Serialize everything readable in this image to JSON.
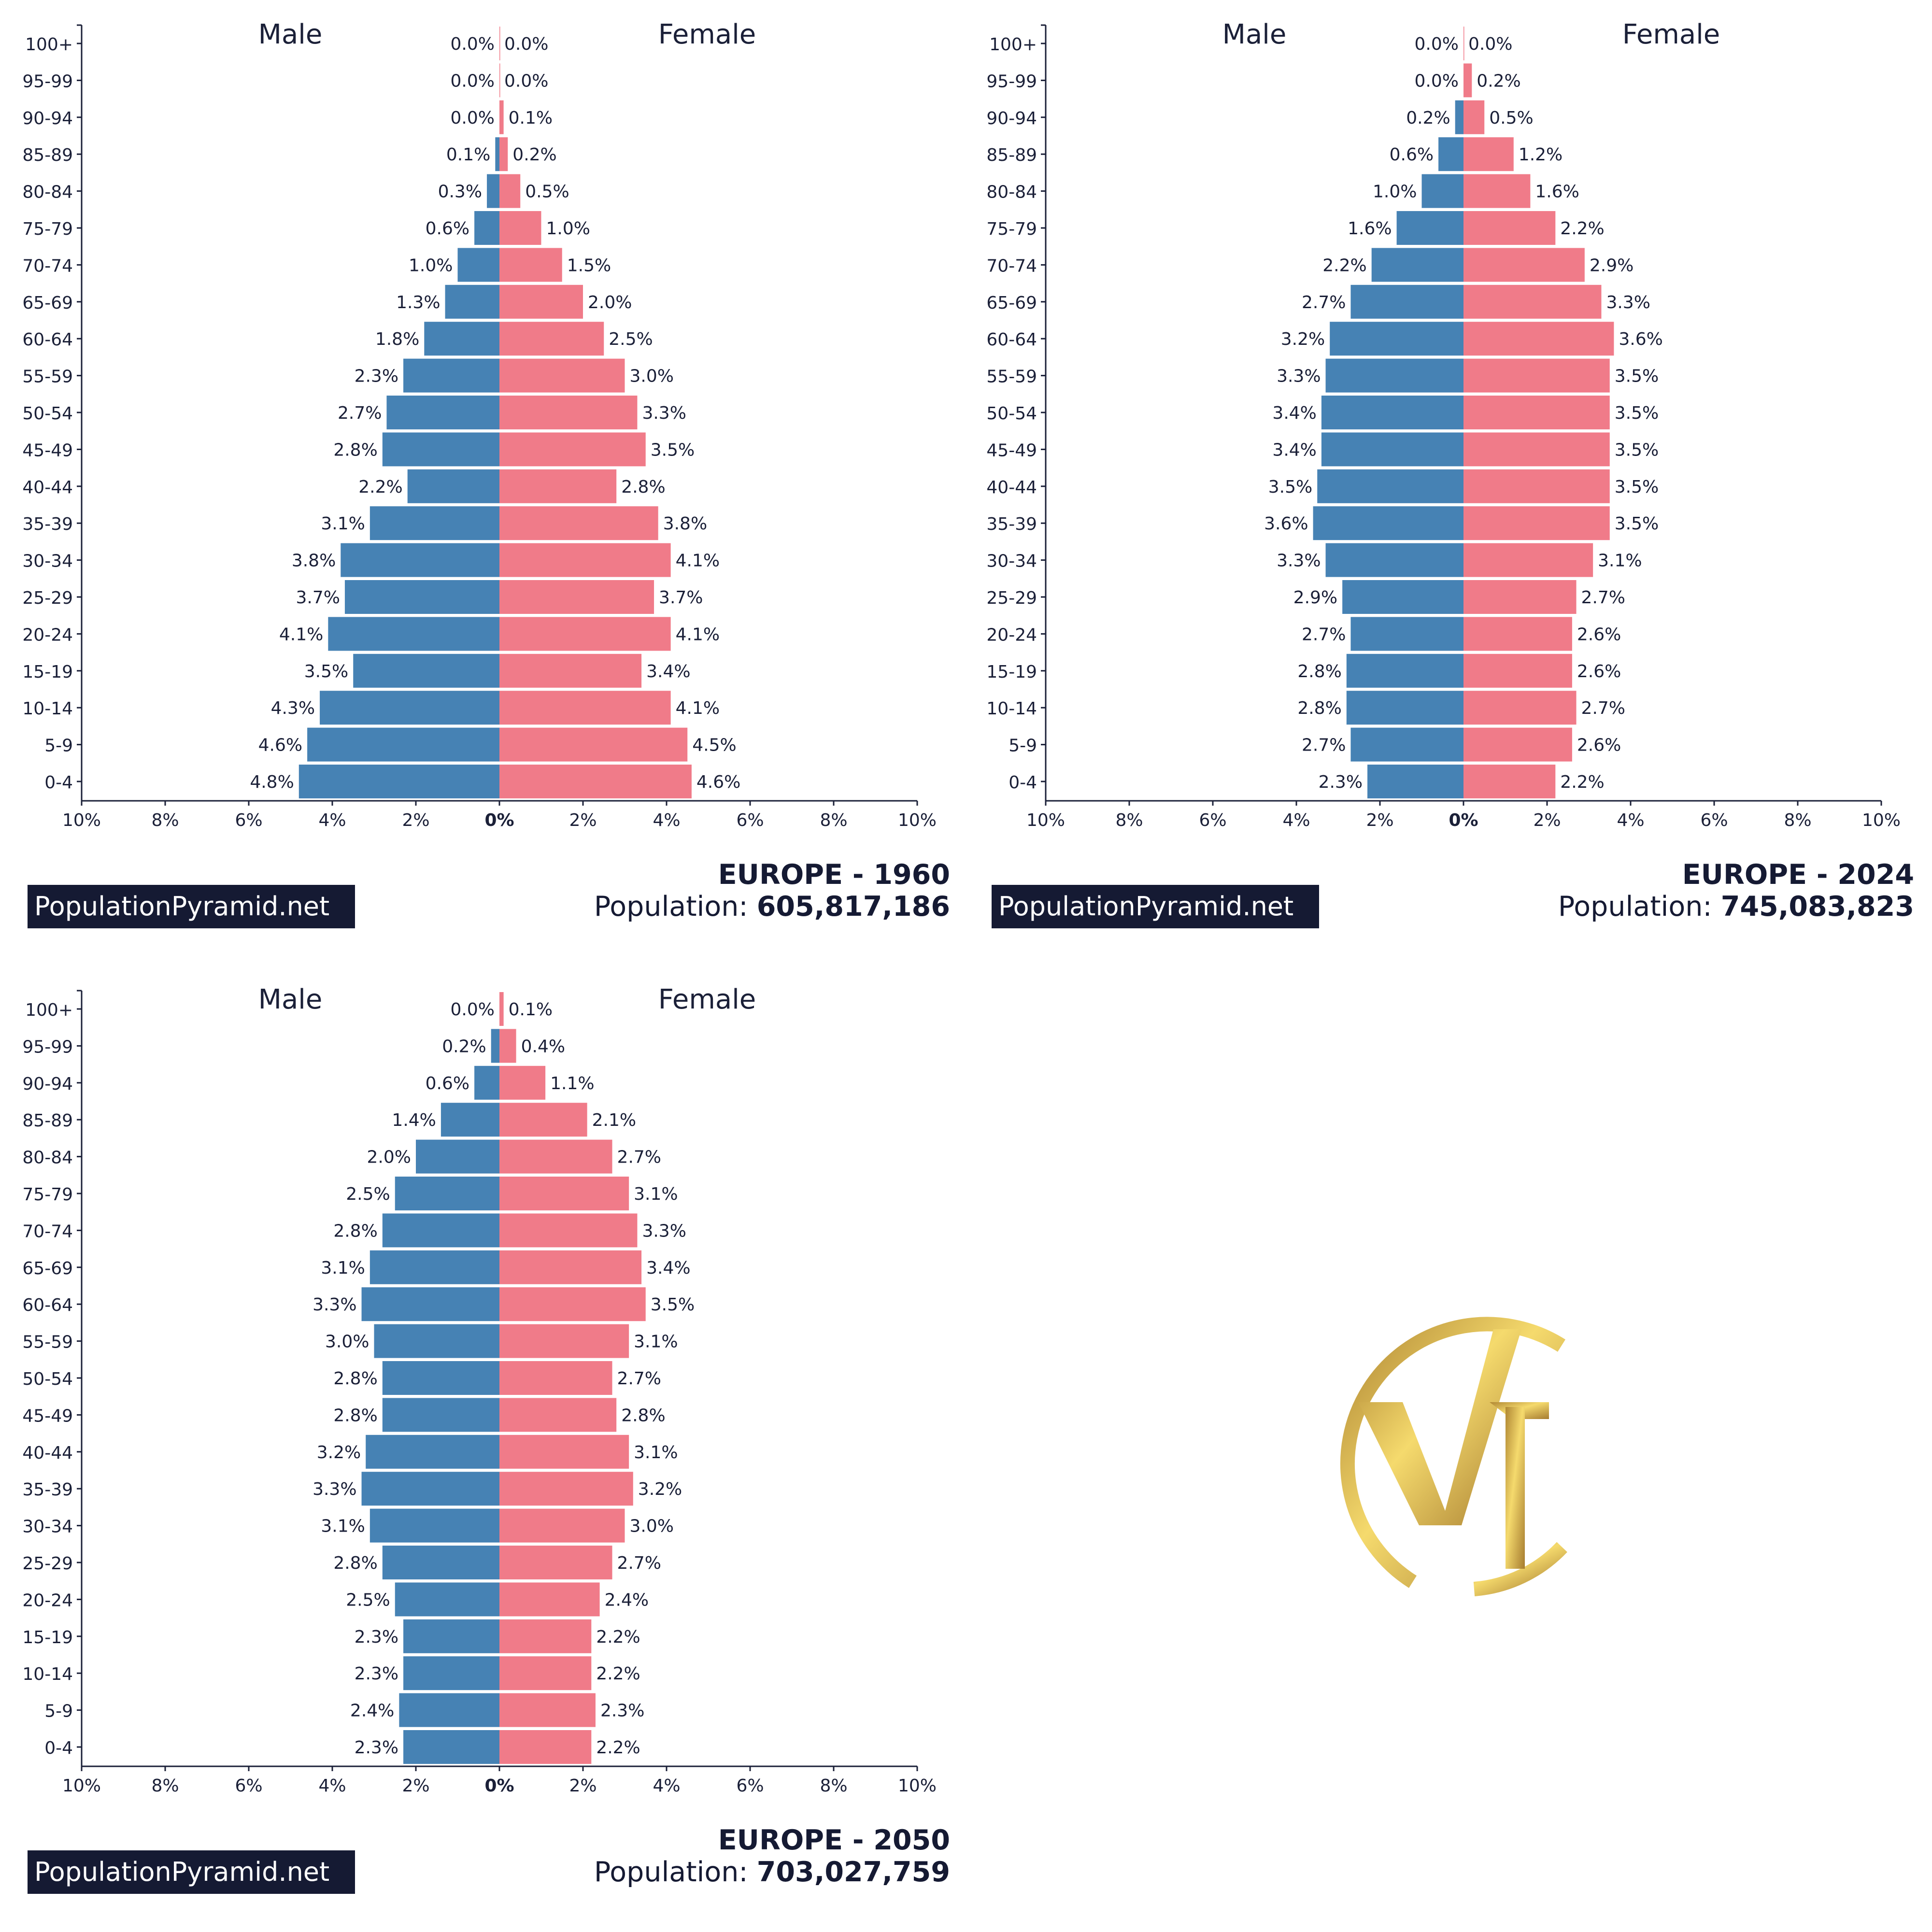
{
  "colors": {
    "male": "#4682b4",
    "female": "#f07b89",
    "text": "#1b2038",
    "axis": "#1b2038",
    "source_bg": "#151a33",
    "logo_gold_light": "#f5da6d",
    "logo_gold_dark": "#b08733"
  },
  "logo_icon": "vt-monogram-gold-circle",
  "panels": [
    {
      "title": "EUROPE - 1960",
      "population_label": "Population:",
      "population_value": "605,817,186",
      "source": "PopulationPyramid.net"
    },
    {
      "title": "EUROPE - 2024",
      "population_label": "Population:",
      "population_value": "745,083,823",
      "source": "PopulationPyramid.net"
    },
    {
      "title": "EUROPE - 2050",
      "population_label": "Population:",
      "population_value": "703,027,759",
      "source": "PopulationPyramid.net"
    }
  ],
  "chart_data": [
    {
      "type": "bar",
      "orientation": "horizontal-pyramid",
      "header_left": "Male",
      "header_right": "Female",
      "categories": [
        "100+",
        "95-99",
        "90-94",
        "85-89",
        "80-84",
        "75-79",
        "70-74",
        "65-69",
        "60-64",
        "55-59",
        "50-54",
        "45-49",
        "40-44",
        "35-39",
        "30-34",
        "25-29",
        "20-24",
        "15-19",
        "10-14",
        "5-9",
        "0-4"
      ],
      "series": [
        {
          "name": "Male",
          "values": [
            0.0,
            0.0,
            0.0,
            0.1,
            0.3,
            0.6,
            1.0,
            1.3,
            1.8,
            2.3,
            2.7,
            2.8,
            2.2,
            3.1,
            3.8,
            3.7,
            4.1,
            3.5,
            4.3,
            4.6,
            4.8
          ]
        },
        {
          "name": "Female",
          "values": [
            0.0,
            0.0,
            0.1,
            0.2,
            0.5,
            1.0,
            1.5,
            2.0,
            2.5,
            3.0,
            3.3,
            3.5,
            2.8,
            3.8,
            4.1,
            3.7,
            4.1,
            3.4,
            4.1,
            4.5,
            4.6
          ]
        }
      ],
      "x_ticks": [
        "10%",
        "8%",
        "6%",
        "4%",
        "2%",
        "0%",
        "2%",
        "4%",
        "6%",
        "8%",
        "10%"
      ],
      "xlim": [
        -10,
        10
      ]
    },
    {
      "type": "bar",
      "orientation": "horizontal-pyramid",
      "header_left": "Male",
      "header_right": "Female",
      "categories": [
        "100+",
        "95-99",
        "90-94",
        "85-89",
        "80-84",
        "75-79",
        "70-74",
        "65-69",
        "60-64",
        "55-59",
        "50-54",
        "45-49",
        "40-44",
        "35-39",
        "30-34",
        "25-29",
        "20-24",
        "15-19",
        "10-14",
        "5-9",
        "0-4"
      ],
      "series": [
        {
          "name": "Male",
          "values": [
            0.0,
            0.0,
            0.2,
            0.6,
            1.0,
            1.6,
            2.2,
            2.7,
            3.2,
            3.3,
            3.4,
            3.4,
            3.5,
            3.6,
            3.3,
            2.9,
            2.7,
            2.8,
            2.8,
            2.7,
            2.3
          ]
        },
        {
          "name": "Female",
          "values": [
            0.0,
            0.2,
            0.5,
            1.2,
            1.6,
            2.2,
            2.9,
            3.3,
            3.6,
            3.5,
            3.5,
            3.5,
            3.5,
            3.5,
            3.1,
            2.7,
            2.6,
            2.6,
            2.7,
            2.6,
            2.2
          ]
        }
      ],
      "x_ticks": [
        "10%",
        "8%",
        "6%",
        "4%",
        "2%",
        "0%",
        "2%",
        "4%",
        "6%",
        "8%",
        "10%"
      ],
      "xlim": [
        -10,
        10
      ]
    },
    {
      "type": "bar",
      "orientation": "horizontal-pyramid",
      "header_left": "Male",
      "header_right": "Female",
      "categories": [
        "100+",
        "95-99",
        "90-94",
        "85-89",
        "80-84",
        "75-79",
        "70-74",
        "65-69",
        "60-64",
        "55-59",
        "50-54",
        "45-49",
        "40-44",
        "35-39",
        "30-34",
        "25-29",
        "20-24",
        "15-19",
        "10-14",
        "5-9",
        "0-4"
      ],
      "series": [
        {
          "name": "Male",
          "values": [
            0.0,
            0.2,
            0.6,
            1.4,
            2.0,
            2.5,
            2.8,
            3.1,
            3.3,
            3.0,
            2.8,
            2.8,
            3.2,
            3.3,
            3.1,
            2.8,
            2.5,
            2.3,
            2.3,
            2.4,
            2.3
          ]
        },
        {
          "name": "Female",
          "values": [
            0.1,
            0.4,
            1.1,
            2.1,
            2.7,
            3.1,
            3.3,
            3.4,
            3.5,
            3.1,
            2.7,
            2.8,
            3.1,
            3.2,
            3.0,
            2.7,
            2.4,
            2.2,
            2.2,
            2.3,
            2.2
          ]
        }
      ],
      "x_ticks": [
        "10%",
        "8%",
        "6%",
        "4%",
        "2%",
        "0%",
        "2%",
        "4%",
        "6%",
        "8%",
        "10%"
      ],
      "xlim": [
        -10,
        10
      ]
    }
  ]
}
